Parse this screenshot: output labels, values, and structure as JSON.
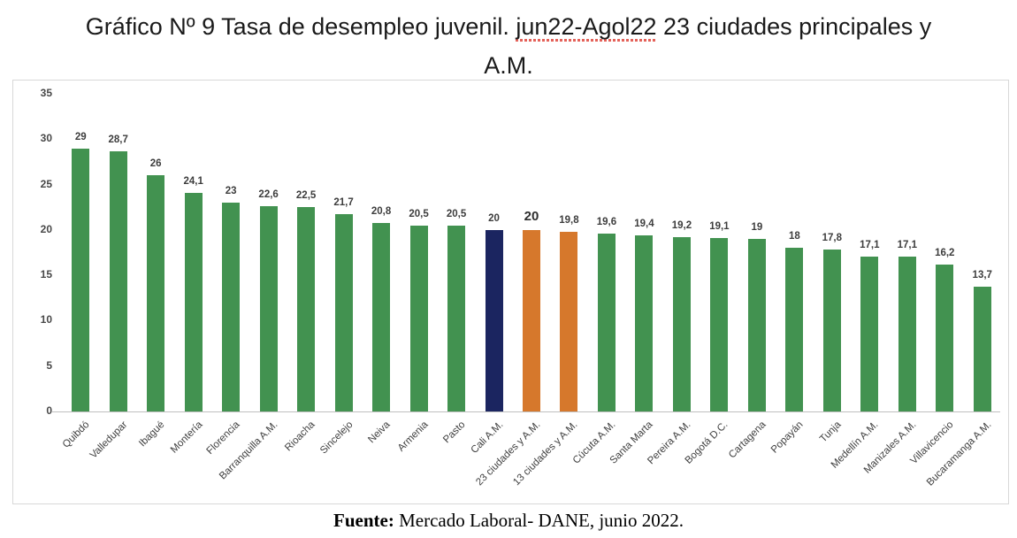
{
  "title": {
    "line1_prefix": "Gráfico Nº 9 Tasa de desempleo juvenil. ",
    "line1_highlight": "jun22-Agol22",
    "line1_suffix": " 23 ciudades principales y",
    "line2": "A.M."
  },
  "footer": {
    "source_label": "Fuente:",
    "source_text": " Mercado Laboral- DANE, junio 2022."
  },
  "colors": {
    "green": "#429250",
    "navy": "#1b2560",
    "orange": "#d6782c",
    "axis_line": "#bfbfbf",
    "frame_border": "#d8d8d8",
    "label_text": "#3d3d3d",
    "squiggle_red": "#e4625a"
  },
  "chart_data": {
    "type": "bar",
    "title": "Tasa de desempleo juvenil. jun22-Agol22 23 ciudades principales y A.M.",
    "xlabel": "",
    "ylabel": "",
    "ylim": [
      0,
      35
    ],
    "yticks": [
      35,
      30,
      25,
      20,
      15,
      10,
      5,
      0
    ],
    "grid": false,
    "legend": null,
    "categories": [
      "Quibdó",
      "Valledupar",
      "Ibagué",
      "Montería",
      "Florencia",
      "Barranquilla A.M.",
      "Rioacha",
      "Sincelejo",
      "Neiva",
      "Armenia",
      "Pasto",
      "Cali A.M.",
      "23 ciudades y A.M.",
      "13 ciudades y A.M.",
      "Cúcuta A.M.",
      "Santa Marta",
      "Pereira A.M.",
      "Bogotá D.C.",
      "Cartagena",
      "Popayán",
      "Tunja",
      "Medellín A.M.",
      "Manizales A.M.",
      "Villavicencio",
      "Bucaramanga A.M."
    ],
    "values": [
      29,
      28.7,
      26,
      24.1,
      23,
      22.6,
      22.5,
      21.7,
      20.8,
      20.5,
      20.5,
      20,
      20,
      19.8,
      19.6,
      19.4,
      19.2,
      19.1,
      19,
      18,
      17.8,
      17.1,
      17.1,
      16.2,
      13.7
    ],
    "value_labels": [
      "29",
      "28,7",
      "26",
      "24,1",
      "23",
      "22,6",
      "22,5",
      "21,7",
      "20,8",
      "20,5",
      "20,5",
      "20",
      "20",
      "19,8",
      "19,6",
      "19,4",
      "19,2",
      "19,1",
      "19",
      "18",
      "17,8",
      "17,1",
      "17,1",
      "16,2",
      "13,7"
    ],
    "bar_colors": [
      "green",
      "green",
      "green",
      "green",
      "green",
      "green",
      "green",
      "green",
      "green",
      "green",
      "green",
      "navy",
      "orange",
      "orange",
      "green",
      "green",
      "green",
      "green",
      "green",
      "green",
      "green",
      "green",
      "green",
      "green",
      "green"
    ],
    "emphasized_label_index": 12
  }
}
